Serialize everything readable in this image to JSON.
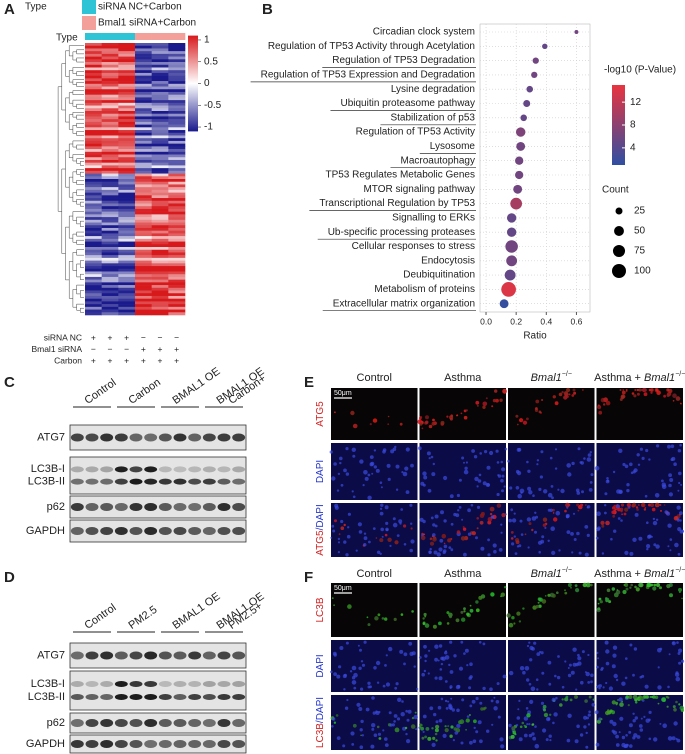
{
  "panel_labels": [
    "A",
    "B",
    "C",
    "D",
    "E",
    "F"
  ],
  "panel_a": {
    "legend_title": "Type",
    "legend": [
      {
        "name": "siRNA NC+Carbon",
        "color": "#2ec4d6"
      },
      {
        "name": "Bmal1 siRNA+Carbon",
        "color": "#f4a09a"
      }
    ],
    "type_label": "Type",
    "scale_ticks": [
      1,
      0.5,
      0,
      -0.5,
      -1
    ],
    "scale_lim": [
      -1.1,
      1.1
    ],
    "conditions": [
      {
        "label": "siRNA NC",
        "signs": [
          "+",
          "+",
          "+",
          "−",
          "−",
          "−"
        ]
      },
      {
        "label": "Bmal1 siRNA",
        "signs": [
          "−",
          "−",
          "−",
          "+",
          "+",
          "+"
        ]
      },
      {
        "label": "Carbon",
        "signs": [
          "+",
          "+",
          "+",
          "+",
          "+",
          "+"
        ]
      }
    ]
  },
  "chart_data": {
    "type": "scatter",
    "categories": [
      "Circadian clock system",
      "Regulation of TP53 Activity through Acetylation",
      "Regulation of TP53 Degradation",
      "Regulation of TP53 Expression and Degradation",
      "Lysine degradation",
      "Ubiquitin proteasome pathway",
      "Stabilization of p53",
      "Regulation of TP53 Activity",
      "Lysosome",
      "Macroautophagy",
      "TP53 Regulates Metabolic Genes",
      "MTOR signaling pathway",
      "Transcriptional Regulation by TP53",
      "Signalling to ERKs",
      "Ub-specific processing proteases",
      "Cellular responses to stress",
      "Endocytosis",
      "Deubiquitination",
      "Metabolism of proteins",
      "Extracellular matrix organization"
    ],
    "underlined": [
      false,
      false,
      true,
      true,
      false,
      true,
      true,
      false,
      true,
      true,
      false,
      false,
      true,
      false,
      true,
      false,
      false,
      false,
      false,
      true
    ],
    "values": [
      0.6,
      0.39,
      0.33,
      0.32,
      0.29,
      0.27,
      0.25,
      0.23,
      0.23,
      0.22,
      0.22,
      0.21,
      0.2,
      0.17,
      0.17,
      0.17,
      0.17,
      0.16,
      0.15,
      0.12
    ],
    "color_values": [
      6,
      5,
      6,
      6,
      5,
      5,
      5,
      7,
      6,
      6,
      6,
      6,
      10,
      5,
      5,
      6,
      6,
      5,
      14,
      1.5
    ],
    "sizes": [
      8,
      15,
      20,
      20,
      22,
      25,
      22,
      45,
      40,
      35,
      35,
      40,
      70,
      45,
      45,
      80,
      60,
      60,
      110,
      40
    ],
    "x_label": "Ratio",
    "xlim": [
      -0.04,
      0.69
    ],
    "xticks": [
      {
        "value": 0,
        "label": "0.0"
      },
      0.2,
      0.4,
      0.6
    ],
    "grid": true,
    "color_label": "-log10 (P-Value)",
    "clim": [
      1,
      15
    ],
    "color_ticks": [
      4,
      8,
      12
    ],
    "colors": [
      "#2f4fa2",
      "#e8343f"
    ],
    "size_label": "Count",
    "size_ticks": [
      25,
      50,
      75,
      100
    ]
  },
  "blots": [
    {
      "groups": [
        [
          "Control"
        ],
        [
          "Carbon"
        ],
        [
          "BMAL1 OE"
        ],
        [
          "Carbon+",
          "BMAL1 OE"
        ]
      ],
      "rows": [
        [
          "ATG7"
        ],
        [
          "LC3B-I",
          "LC3B-II"
        ],
        [
          "p62"
        ],
        [
          "GAPDH"
        ]
      ]
    },
    {
      "groups": [
        [
          "Control"
        ],
        [
          "PM2.5"
        ],
        [
          "BMAL1 OE"
        ],
        [
          "PM2.5+",
          "BMAL1 OE"
        ]
      ],
      "rows": [
        [
          "ATG7"
        ],
        [
          "LC3B-I",
          "LC3B-II"
        ],
        [
          "p62"
        ],
        [
          "GAPDH"
        ]
      ]
    }
  ],
  "imaging": [
    {
      "columns": [
        {
          "pre": "Control"
        },
        {
          "pre": "Asthma"
        },
        {
          "italic": "Bmal1",
          "sup": "−/−"
        },
        {
          "pre": "Asthma + ",
          "italic": "Bmal1",
          "sup": "−/−"
        }
      ],
      "rows": [
        [
          "ATG5"
        ],
        [
          "DAPI"
        ],
        [
          "ATG5",
          "/DAPI"
        ]
      ],
      "scale_bar": "50μm"
    },
    {
      "columns": [
        {
          "pre": "Control"
        },
        {
          "pre": "Asthma"
        },
        {
          "italic": "Bmal1",
          "sup": "−/−"
        },
        {
          "pre": "Asthma + ",
          "italic": "Bmal1",
          "sup": "−/−"
        }
      ],
      "rows": [
        [
          "LC3B"
        ],
        [
          "DAPI"
        ],
        [
          "LC3B",
          "/DAPI"
        ]
      ],
      "scale_bar": "50μm"
    }
  ]
}
